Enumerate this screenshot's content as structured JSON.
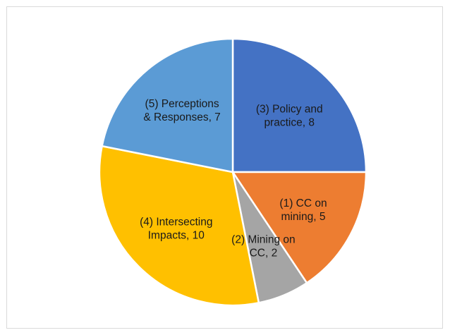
{
  "chart_data": {
    "type": "pie",
    "title": "",
    "slices": [
      {
        "label_lines": [
          "(3) Policy and",
          "practice, 8"
        ],
        "value": 8,
        "color": "#4472C4"
      },
      {
        "label_lines": [
          "(1) CC on",
          "mining, 5"
        ],
        "value": 5,
        "color": "#ED7D31"
      },
      {
        "label_lines": [
          "(2) Mining on",
          "CC, 2"
        ],
        "value": 2,
        "color": "#A5A5A5"
      },
      {
        "label_lines": [
          "(4) Intersecting",
          "Impacts, 10"
        ],
        "value": 10,
        "color": "#FFC000"
      },
      {
        "label_lines": [
          "(5) Perceptions",
          "& Responses, 7"
        ],
        "value": 7,
        "color": "#5B9BD5"
      }
    ],
    "start_angle": "12 o'clock",
    "direction": "clockwise",
    "legend": "none",
    "data_labels": "inside slices"
  }
}
